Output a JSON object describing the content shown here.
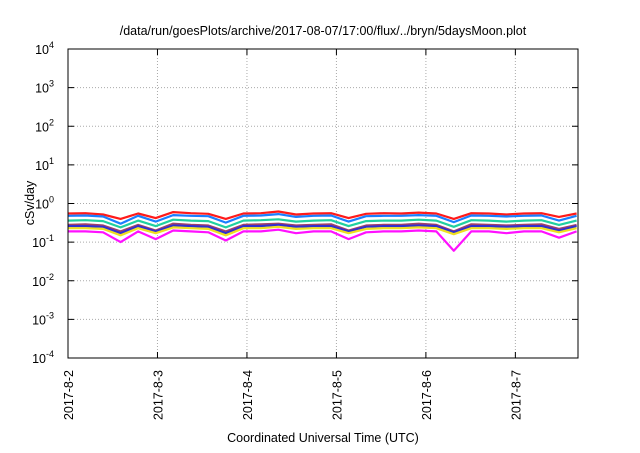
{
  "chart_data": {
    "type": "line",
    "title": "/data/run/goesPlots/archive/2017-08-07/17:00/flux/../bryn/5daysMoon.plot",
    "xlabel": "Coordinated Universal Time (UTC)",
    "ylabel": "cSv/day",
    "yscale": "log",
    "ylim": [
      0.0001,
      10000
    ],
    "xlim_days": [
      0,
      5.7
    ],
    "grid": true,
    "y_ticks": [
      {
        "base": "10",
        "exp": "-4",
        "value": 0.0001
      },
      {
        "base": "10",
        "exp": "-3",
        "value": 0.001
      },
      {
        "base": "10",
        "exp": "-2",
        "value": 0.01
      },
      {
        "base": "10",
        "exp": "-1",
        "value": 0.1
      },
      {
        "base": "10",
        "exp": "0",
        "value": 1
      },
      {
        "base": "10",
        "exp": "1",
        "value": 10
      },
      {
        "base": "10",
        "exp": "2",
        "value": 100
      },
      {
        "base": "10",
        "exp": "3",
        "value": 1000
      },
      {
        "base": "10",
        "exp": "4",
        "value": 10000
      }
    ],
    "x_ticks": [
      {
        "label": "2017-8-2",
        "day": 0
      },
      {
        "label": "2017-8-3",
        "day": 1
      },
      {
        "label": "2017-8-4",
        "day": 2
      },
      {
        "label": "2017-8-5",
        "day": 3
      },
      {
        "label": "2017-8-6",
        "day": 4
      },
      {
        "label": "2017-8-7",
        "day": 5
      }
    ],
    "x_start_day": 0,
    "x_step_day": 0.196,
    "series": [
      {
        "name": "red",
        "color": "#ff1a1a",
        "values": [
          0.55,
          0.56,
          0.52,
          0.4,
          0.55,
          0.42,
          0.6,
          0.56,
          0.54,
          0.4,
          0.55,
          0.56,
          0.62,
          0.52,
          0.55,
          0.56,
          0.42,
          0.54,
          0.56,
          0.55,
          0.58,
          0.55,
          0.4,
          0.56,
          0.55,
          0.52,
          0.55,
          0.56,
          0.45,
          0.55
        ]
      },
      {
        "name": "blue",
        "color": "#1a7fff",
        "values": [
          0.48,
          0.49,
          0.46,
          0.3,
          0.48,
          0.34,
          0.5,
          0.48,
          0.47,
          0.32,
          0.48,
          0.49,
          0.53,
          0.45,
          0.48,
          0.49,
          0.34,
          0.47,
          0.48,
          0.48,
          0.5,
          0.48,
          0.33,
          0.49,
          0.48,
          0.46,
          0.48,
          0.49,
          0.36,
          0.48
        ]
      },
      {
        "name": "teal",
        "color": "#20d0a0",
        "values": [
          0.36,
          0.37,
          0.35,
          0.24,
          0.36,
          0.26,
          0.38,
          0.36,
          0.35,
          0.24,
          0.36,
          0.37,
          0.39,
          0.34,
          0.36,
          0.37,
          0.26,
          0.35,
          0.36,
          0.36,
          0.38,
          0.36,
          0.25,
          0.37,
          0.36,
          0.34,
          0.36,
          0.37,
          0.28,
          0.36
        ]
      },
      {
        "name": "maroon",
        "color": "#a0406a",
        "values": [
          0.28,
          0.29,
          0.27,
          0.19,
          0.28,
          0.2,
          0.3,
          0.28,
          0.27,
          0.19,
          0.28,
          0.29,
          0.3,
          0.27,
          0.28,
          0.29,
          0.2,
          0.27,
          0.28,
          0.28,
          0.3,
          0.28,
          0.19,
          0.29,
          0.28,
          0.27,
          0.28,
          0.29,
          0.22,
          0.28
        ]
      },
      {
        "name": "dark-blue",
        "color": "#3030d0",
        "values": [
          0.26,
          0.26,
          0.25,
          0.17,
          0.26,
          0.19,
          0.27,
          0.26,
          0.25,
          0.17,
          0.26,
          0.26,
          0.28,
          0.25,
          0.26,
          0.26,
          0.19,
          0.25,
          0.26,
          0.26,
          0.27,
          0.26,
          0.18,
          0.26,
          0.26,
          0.25,
          0.26,
          0.26,
          0.2,
          0.26
        ]
      },
      {
        "name": "yellow",
        "color": "#f0e020",
        "values": [
          0.23,
          0.23,
          0.22,
          0.15,
          0.23,
          0.17,
          0.24,
          0.23,
          0.22,
          0.15,
          0.23,
          0.23,
          0.25,
          0.22,
          0.23,
          0.23,
          0.17,
          0.22,
          0.23,
          0.23,
          0.24,
          0.23,
          0.16,
          0.23,
          0.23,
          0.22,
          0.23,
          0.23,
          0.18,
          0.23
        ]
      },
      {
        "name": "magenta",
        "color": "#ff10ff",
        "values": [
          0.19,
          0.19,
          0.18,
          0.1,
          0.19,
          0.12,
          0.2,
          0.19,
          0.18,
          0.11,
          0.19,
          0.19,
          0.21,
          0.17,
          0.19,
          0.19,
          0.12,
          0.18,
          0.19,
          0.19,
          0.2,
          0.19,
          0.06,
          0.19,
          0.19,
          0.17,
          0.19,
          0.19,
          0.13,
          0.19
        ]
      }
    ]
  }
}
